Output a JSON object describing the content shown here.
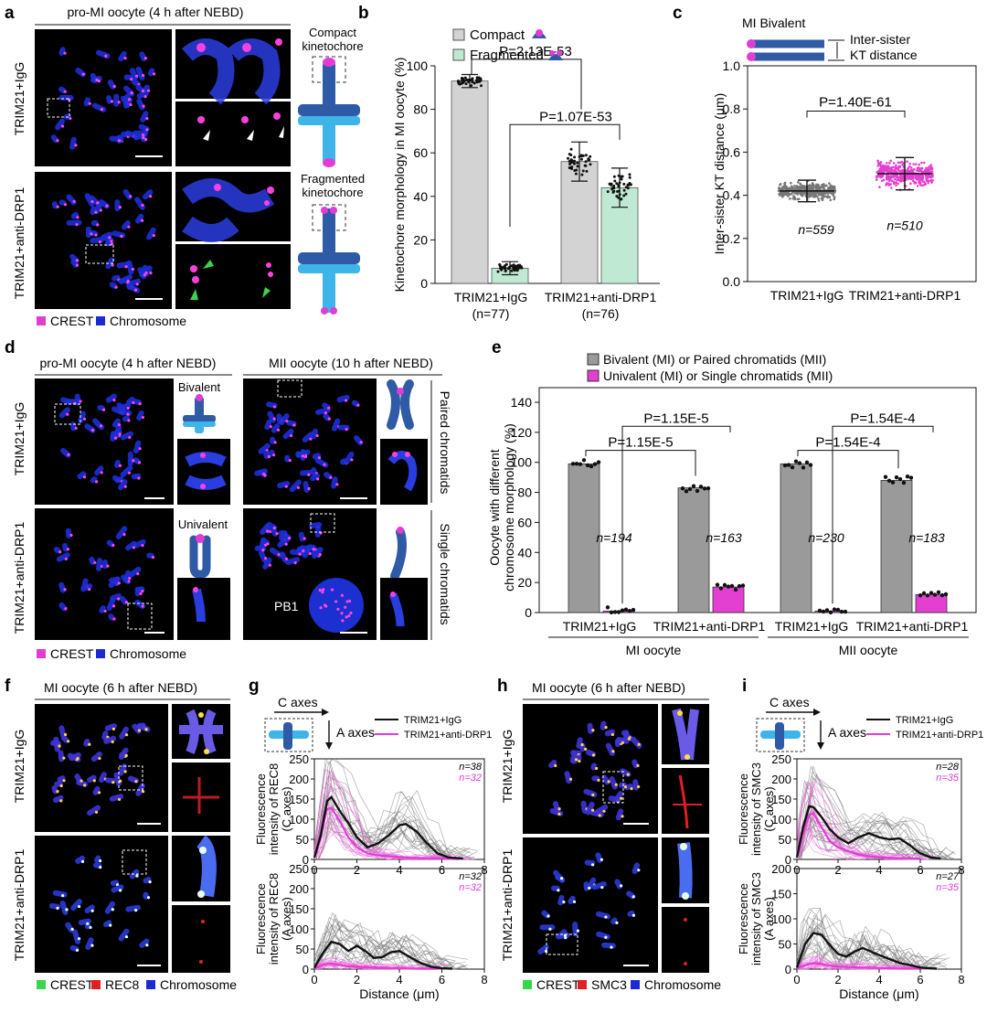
{
  "panel_letters": {
    "a": "a",
    "b": "b",
    "c": "c",
    "d": "d",
    "e": "e",
    "f": "f",
    "g": "g",
    "h": "h",
    "i": "i"
  },
  "colors": {
    "chromosome": "#1a2bd6",
    "crest": "#e23bd6",
    "rec8": "#e02020",
    "kt_green": "#39d54a",
    "gray_bar": "#d3d3d3",
    "mint_bar": "#bfe9d2",
    "dark_bar": "#9a9a9a",
    "magenta_bar": "#e33fd0",
    "scheme_dark": "#2f5aa6",
    "scheme_light": "#3fb4e8",
    "igg_line": "#111111",
    "drp1_line": "#e23bd6"
  },
  "panel_a": {
    "title": "pro-MI oocyte (4 h after NEBD)",
    "row1": "TRIM21+IgG",
    "row2": "TRIM21+anti-DRP1",
    "scheme1": "Compact kinetochore",
    "scheme2": "Fragmented kinetochore",
    "legend_crest": "CREST",
    "legend_chrom": "Chromosome"
  },
  "panel_d": {
    "title_left": "pro-MI oocyte (4 h after NEBD)",
    "title_right": "MII oocyte (10 h after NEBD)",
    "row1": "TRIM21+IgG",
    "row2": "TRIM21+anti-DRP1",
    "bivalent": "Bivalent",
    "univalent": "Univalent",
    "paired": "Paired chromatids",
    "single": "Single chromatids",
    "pb1": "PB1",
    "legend_crest": "CREST",
    "legend_chrom": "Chromosome"
  },
  "panel_f": {
    "title": "MI oocyte (6 h after NEBD)",
    "row1": "TRIM21+IgG",
    "row2": "TRIM21+anti-DRP1",
    "legend_crest": "CREST",
    "legend_rec8": "REC8",
    "legend_chrom": "Chromosome"
  },
  "panel_h": {
    "title": "MI oocyte (6 h after NEBD)",
    "row1": "TRIM21+IgG",
    "row2": "TRIM21+anti-DRP1",
    "legend_crest": "CREST",
    "legend_smc3": "SMC3",
    "legend_chrom": "Chromosome"
  },
  "chart_data": [
    {
      "id": "b",
      "type": "bar",
      "ylabel": "Kinetochore morphology in MI oocyte (%)",
      "ylim": [
        0,
        100
      ],
      "yticks": [
        0,
        20,
        40,
        60,
        80,
        100
      ],
      "categories": [
        "TRIM21+IgG",
        "TRIM21+anti-DRP1"
      ],
      "category_n": [
        "(n=77)",
        "(n=76)"
      ],
      "series": [
        {
          "name": "Compact",
          "values": [
            93,
            56
          ],
          "errors": [
            3,
            9
          ]
        },
        {
          "name": "Fragmented",
          "values": [
            7,
            44
          ],
          "errors": [
            3,
            9
          ]
        }
      ],
      "legend_placement": "top-left",
      "annotations": [
        "P=2.13E-53",
        "P=1.07E-53"
      ]
    },
    {
      "id": "c",
      "type": "scatter",
      "title": "MI Bivalent",
      "scheme_label": "Inter-sister KT distance",
      "ylabel": "Inter-sister KT distance (μm)",
      "ylim": [
        0.0,
        1.0
      ],
      "yticks": [
        "0.0",
        "0.2",
        "0.4",
        "0.6",
        "0.8",
        "1.0"
      ],
      "categories": [
        "TRIM21+IgG",
        "TRIM21+anti-DRP1"
      ],
      "means": [
        0.42,
        0.5
      ],
      "sd": [
        0.05,
        0.075
      ],
      "n_labels": [
        "n=559",
        "n=510"
      ],
      "annotation": "P=1.40E-61"
    },
    {
      "id": "e",
      "type": "bar",
      "ylabel": "Oocyte with different chromosome morphology (%)",
      "ylim": [
        0,
        140
      ],
      "yticks": [
        0,
        20,
        40,
        60,
        80,
        100,
        120,
        140
      ],
      "legend": [
        "Bivalent (MI) or Paired chromatids (MII)",
        "Univalent (MI) or Single chromatids (MII)"
      ],
      "categories": [
        "TRIM21+IgG",
        "TRIM21+anti-DRP1",
        "TRIM21+IgG",
        "TRIM21+anti-DRP1"
      ],
      "groups": [
        "MI oocyte",
        "MII oocyte"
      ],
      "series": [
        {
          "name": "Bivalent (MI) or Paired chromatids (MII)",
          "values": [
            99,
            83,
            99,
            88
          ]
        },
        {
          "name": "Univalent (MI) or Single chromatids (MII)",
          "values": [
            1,
            17,
            1,
            12
          ]
        }
      ],
      "n_labels": [
        "n=194",
        "n=163",
        "n=230",
        "n=183"
      ],
      "annotations": [
        "P=1.15E-5",
        "P=1.15E-5",
        "P=1.54E-4",
        "P=1.54E-4"
      ]
    },
    {
      "id": "g",
      "type": "line",
      "c_axes": "C axes",
      "a_axes": "A axes",
      "legend": [
        "TRIM21+IgG",
        "TRIM21+anti-DRP1"
      ],
      "xlabel": "Distance (μm)",
      "xlim": [
        0,
        8
      ],
      "xticks": [
        0,
        2,
        4,
        6,
        8
      ],
      "top": {
        "ylabel": "Fluorescence intensity of REC8 (C axes)",
        "ylim": [
          0,
          250
        ],
        "yticks": [
          0,
          50,
          100,
          150,
          200,
          250
        ],
        "n_igg": "n=38",
        "n_drp1": "n=32",
        "igg_mean": [
          [
            0,
            5
          ],
          [
            0.3,
            60
          ],
          [
            0.6,
            145
          ],
          [
            0.8,
            155
          ],
          [
            1.2,
            120
          ],
          [
            1.6,
            90
          ],
          [
            2,
            55
          ],
          [
            2.5,
            30
          ],
          [
            3,
            40
          ],
          [
            3.5,
            60
          ],
          [
            4,
            85
          ],
          [
            4.3,
            88
          ],
          [
            4.8,
            70
          ],
          [
            5.3,
            40
          ],
          [
            5.8,
            15
          ],
          [
            6.3,
            5
          ],
          [
            7,
            2
          ]
        ],
        "drp1_mean": [
          [
            0,
            5
          ],
          [
            0.3,
            60
          ],
          [
            0.6,
            125
          ],
          [
            0.8,
            128
          ],
          [
            1.2,
            95
          ],
          [
            1.6,
            55
          ],
          [
            2,
            30
          ],
          [
            2.5,
            15
          ],
          [
            3,
            10
          ],
          [
            3.5,
            8
          ],
          [
            4,
            6
          ],
          [
            4.5,
            4
          ],
          [
            5,
            3
          ],
          [
            6,
            2
          ],
          [
            6.8,
            1
          ]
        ]
      },
      "bottom": {
        "ylabel": "Fluorescence intensity of REC8 (A axes)",
        "ylim": [
          0,
          250
        ],
        "yticks": [
          0,
          50,
          100,
          150,
          200,
          250
        ],
        "n_igg": "n=32",
        "n_drp1": "n=32",
        "igg_mean": [
          [
            0,
            3
          ],
          [
            0.4,
            40
          ],
          [
            0.8,
            68
          ],
          [
            1.2,
            62
          ],
          [
            1.6,
            45
          ],
          [
            2,
            58
          ],
          [
            2.4,
            45
          ],
          [
            2.8,
            28
          ],
          [
            3.2,
            30
          ],
          [
            3.6,
            42
          ],
          [
            4,
            45
          ],
          [
            4.5,
            30
          ],
          [
            5,
            15
          ],
          [
            5.5,
            6
          ],
          [
            6,
            2
          ],
          [
            6.5,
            1
          ]
        ],
        "drp1_mean": [
          [
            0,
            2
          ],
          [
            0.4,
            10
          ],
          [
            0.8,
            14
          ],
          [
            1.2,
            10
          ],
          [
            1.6,
            7
          ],
          [
            2,
            6
          ],
          [
            2.6,
            4
          ],
          [
            3.4,
            3
          ],
          [
            4.2,
            2
          ],
          [
            5,
            1
          ],
          [
            5.8,
            1
          ]
        ]
      }
    },
    {
      "id": "i",
      "type": "line",
      "c_axes": "C axes",
      "a_axes": "A axes",
      "legend": [
        "TRIM21+IgG",
        "TRIM21+anti-DRP1"
      ],
      "xlabel": "Distance (μm)",
      "xlim": [
        0,
        8
      ],
      "xticks": [
        0,
        2,
        4,
        6,
        8
      ],
      "top": {
        "ylabel": "Fluorescence intensity of SMC3 (C axes)",
        "ylim": [
          0,
          250
        ],
        "yticks": [
          0,
          50,
          100,
          150,
          200,
          250
        ],
        "n_igg": "n=28",
        "n_drp1": "n=35",
        "igg_mean": [
          [
            0,
            5
          ],
          [
            0.3,
            80
          ],
          [
            0.6,
            132
          ],
          [
            0.8,
            130
          ],
          [
            1.2,
            105
          ],
          [
            1.6,
            75
          ],
          [
            2,
            55
          ],
          [
            2.5,
            40
          ],
          [
            3,
            55
          ],
          [
            3.5,
            65
          ],
          [
            4,
            55
          ],
          [
            4.5,
            50
          ],
          [
            5,
            52
          ],
          [
            5.5,
            35
          ],
          [
            6,
            15
          ],
          [
            6.5,
            5
          ],
          [
            7,
            2
          ]
        ],
        "drp1_mean": [
          [
            0,
            5
          ],
          [
            0.3,
            70
          ],
          [
            0.6,
            110
          ],
          [
            0.8,
            115
          ],
          [
            1.2,
            80
          ],
          [
            1.6,
            45
          ],
          [
            2,
            30
          ],
          [
            2.5,
            20
          ],
          [
            3,
            12
          ],
          [
            3.5,
            8
          ],
          [
            4,
            5
          ],
          [
            5,
            3
          ],
          [
            6,
            2
          ]
        ]
      },
      "bottom": {
        "ylabel": "Fluorescence intensity of SMC3 (A axes)",
        "ylim": [
          0,
          200
        ],
        "yticks": [
          0,
          50,
          100,
          150,
          200
        ],
        "n_igg": "n=27",
        "n_drp1": "n=35",
        "igg_mean": [
          [
            0,
            3
          ],
          [
            0.4,
            50
          ],
          [
            0.8,
            72
          ],
          [
            1.2,
            68
          ],
          [
            1.6,
            48
          ],
          [
            2,
            30
          ],
          [
            2.4,
            25
          ],
          [
            2.8,
            35
          ],
          [
            3.2,
            42
          ],
          [
            3.6,
            35
          ],
          [
            4,
            28
          ],
          [
            4.5,
            20
          ],
          [
            5,
            12
          ],
          [
            5.5,
            8
          ],
          [
            6,
            3
          ],
          [
            6.8,
            1
          ]
        ],
        "drp1_mean": [
          [
            0,
            2
          ],
          [
            0.4,
            8
          ],
          [
            0.8,
            12
          ],
          [
            1.2,
            10
          ],
          [
            1.6,
            7
          ],
          [
            2,
            5
          ],
          [
            2.6,
            4
          ],
          [
            3.4,
            3
          ],
          [
            4.2,
            2
          ],
          [
            5,
            1
          ],
          [
            6,
            1
          ]
        ]
      }
    }
  ]
}
